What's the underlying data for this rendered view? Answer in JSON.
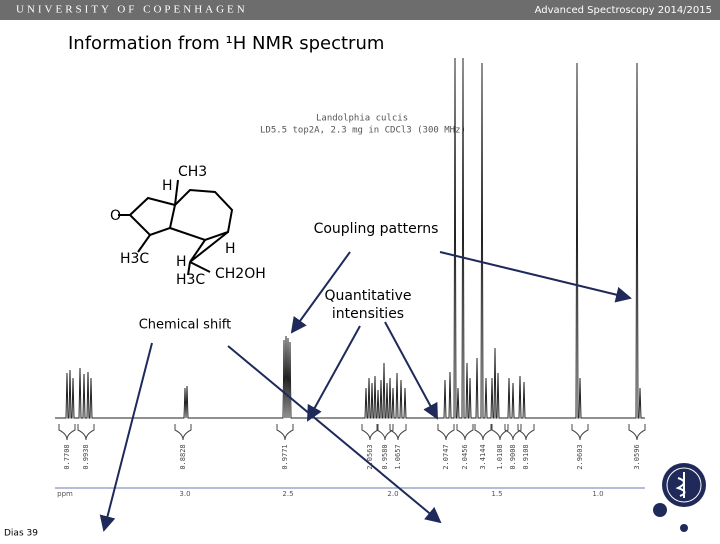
{
  "header": {
    "university": "UNIVERSITY OF COPENHAGEN",
    "course": "Advanced Spectroscopy 2014/2015"
  },
  "title": "Information from ¹H NMR spectrum",
  "spectrum": {
    "sample_name": "Landolphia culcis",
    "conditions": "LD5.5 top2A, 2.3 mg in CDCl3 (300 MHz)",
    "axis_labels": [
      "ppm",
      "3.0",
      "2.5",
      "2.0",
      "1.5",
      "1.0"
    ],
    "integrals": [
      "0.7708",
      "0.9938",
      "0.8828",
      "0.9771",
      "2.0563",
      "0.9580",
      "1.0657",
      "2.0747",
      "2.0456",
      "3.4144",
      "1.0108",
      "0.9008",
      "0.9108",
      "2.9603",
      "3.0596"
    ]
  },
  "molecule": {
    "labels": [
      "CH3",
      "H",
      "O",
      "H3C",
      "H",
      "H",
      "CH2OH",
      "H3C"
    ]
  },
  "annotations": {
    "coupling": "Coupling patterns",
    "shift": "Chemical shift",
    "intensities_1": "Quantitative",
    "intensities_2": "intensities"
  },
  "footer": {
    "slide": "Dias 39"
  }
}
